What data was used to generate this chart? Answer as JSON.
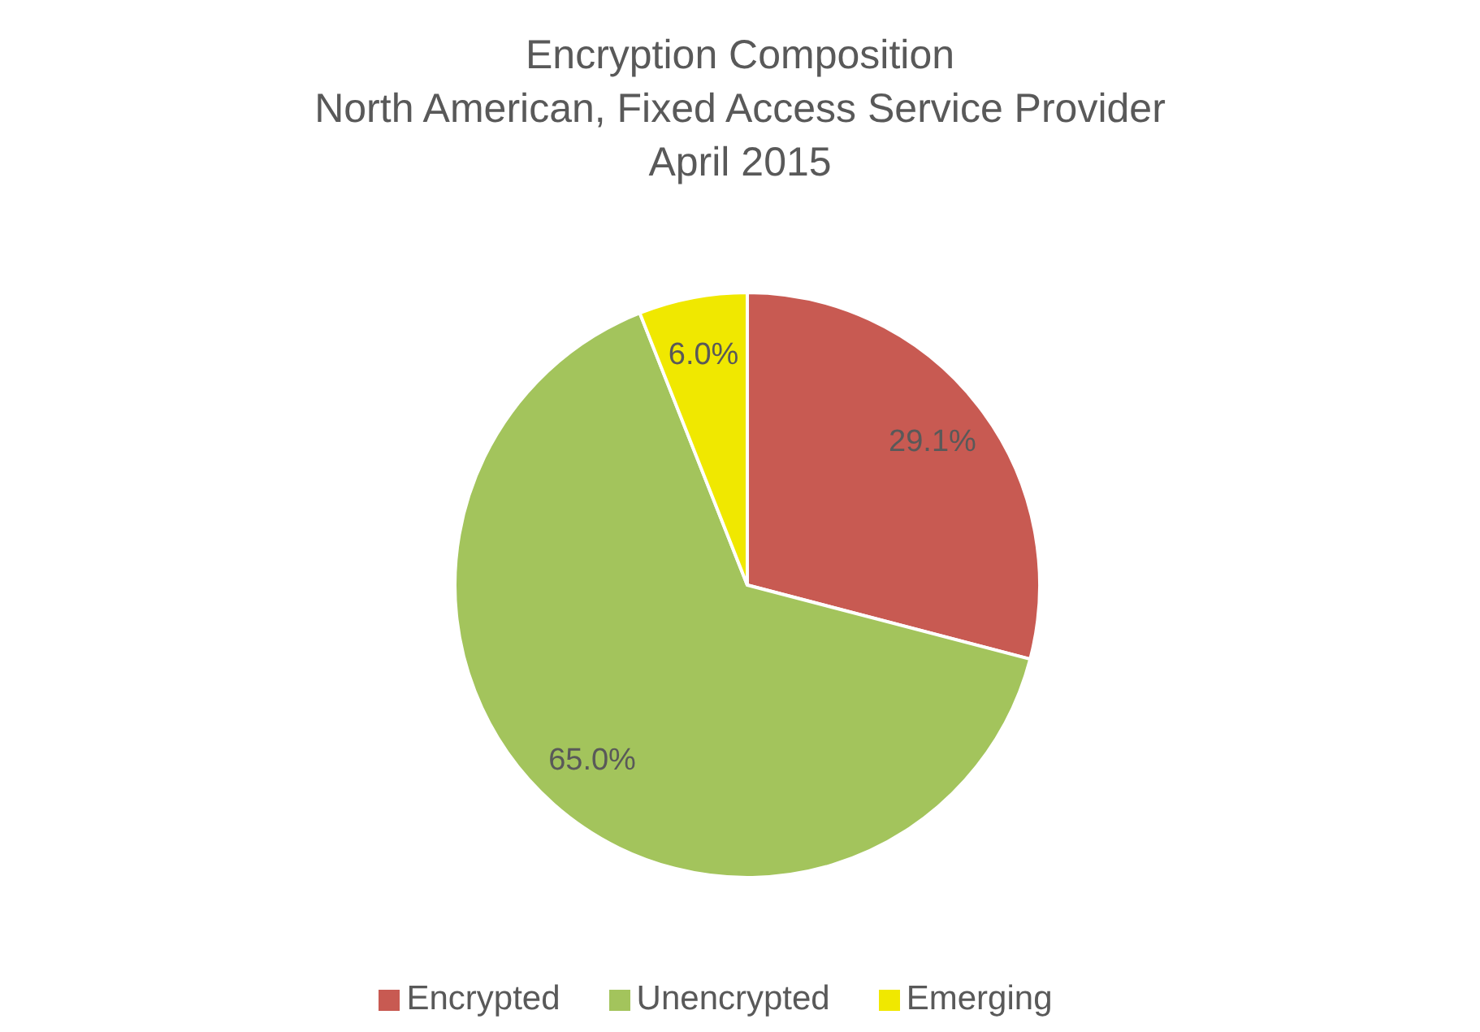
{
  "chart_data": {
    "type": "pie",
    "title": "Encryption Composition",
    "subtitle": "North American, Fixed Access Service Provider\nApril 2015",
    "categories": [
      "Encrypted",
      "Unencrypted",
      "Emerging"
    ],
    "values": [
      29.1,
      65.0,
      6.0
    ],
    "value_labels": [
      "29.1%",
      "65.0%",
      "6.0%"
    ],
    "colors": [
      "#c85a52",
      "#a3c45c",
      "#f0e800"
    ],
    "legend": "bottom"
  }
}
